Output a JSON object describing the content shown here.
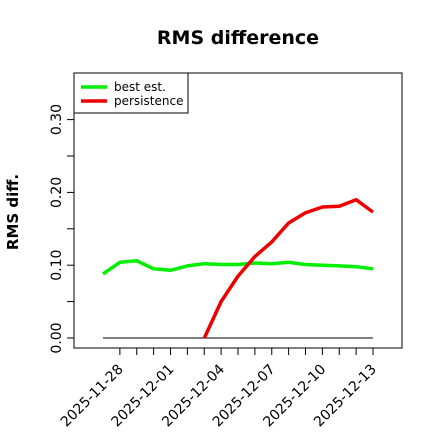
{
  "chart_data": {
    "type": "line",
    "title": "RMS difference",
    "ylabel": "RMS diff.",
    "xlabel": "",
    "x_ticks": [
      "2025-11-28",
      "2025-12-01",
      "2025-12-04",
      "2025-12-07",
      "2025-12-10",
      "2025-12-13"
    ],
    "x": [
      "2025-11-27",
      "2025-11-28",
      "2025-11-29",
      "2025-11-30",
      "2025-12-01",
      "2025-12-02",
      "2025-12-03",
      "2025-12-04",
      "2025-12-05",
      "2025-12-06",
      "2025-12-07",
      "2025-12-08",
      "2025-12-09",
      "2025-12-10",
      "2025-12-11",
      "2025-12-12",
      "2025-12-13"
    ],
    "xlim": [
      "2025-11-27",
      "2025-12-13"
    ],
    "y_ticks": [
      "0.00",
      "0.10",
      "0.20",
      "0.30"
    ],
    "ylim": [
      0.0,
      0.34
    ],
    "grid": false,
    "legend_position": "top-left",
    "series": [
      {
        "name": "best est.",
        "color": "#00ee00",
        "values": [
          0.088,
          0.104,
          0.106,
          0.095,
          0.093,
          0.099,
          0.102,
          0.101,
          0.101,
          0.103,
          0.102,
          0.104,
          0.101,
          0.1,
          0.099,
          0.098,
          0.095
        ]
      },
      {
        "name": "persistence",
        "color": "#ee0000",
        "values": [
          null,
          null,
          null,
          null,
          null,
          null,
          0.0,
          0.05,
          0.085,
          0.112,
          0.132,
          0.158,
          0.172,
          0.18,
          0.181,
          0.19,
          0.173
        ]
      }
    ],
    "reference_line": {
      "y": 0.0,
      "color": "#555555"
    }
  }
}
